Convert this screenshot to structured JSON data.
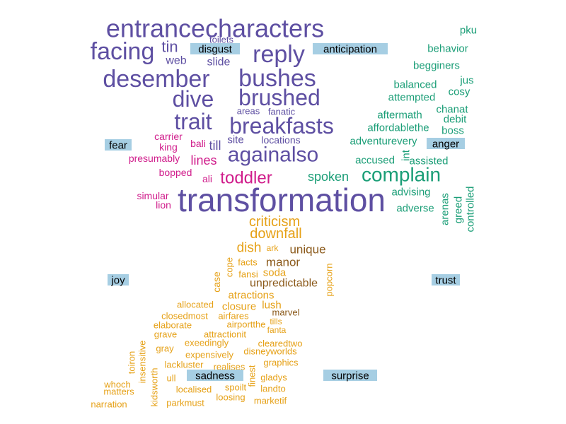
{
  "chart_data": {
    "type": "wordcloud",
    "title": "",
    "colors": {
      "anger": "#1b9e77",
      "anticipation": "#5e4fa2",
      "disgust": "#5e4fa2",
      "fear": "#d01c8b",
      "joy": "#5e4fa2",
      "sadness": "#e6a117",
      "surprise": "#8b5a1b",
      "trust": "#1b9e77",
      "label_background": "#a6cee3"
    },
    "labels": [
      "anticipation",
      "disgust",
      "fear",
      "joy",
      "sadness",
      "surprise",
      "anger",
      "trust"
    ],
    "words": [
      {
        "text": "transformation",
        "group": "joy",
        "size": 5
      },
      {
        "text": "entrancecharacters",
        "group": "anticipation",
        "size": 4
      },
      {
        "text": "facing",
        "group": "anticipation",
        "size": 4
      },
      {
        "text": "reply",
        "group": "anticipation",
        "size": 4
      },
      {
        "text": "desember",
        "group": "anticipation",
        "size": 4
      },
      {
        "text": "bushes",
        "group": "anticipation",
        "size": 4
      },
      {
        "text": "dive",
        "group": "anticipation",
        "size": 4
      },
      {
        "text": "brushed",
        "group": "anticipation",
        "size": 4
      },
      {
        "text": "trait",
        "group": "anticipation",
        "size": 4
      },
      {
        "text": "breakfasts",
        "group": "anticipation",
        "size": 4
      },
      {
        "text": "againalso",
        "group": "anticipation",
        "size": 3
      },
      {
        "text": "tin",
        "group": "anticipation",
        "size": 2
      },
      {
        "text": "web",
        "group": "anticipation",
        "size": 1
      },
      {
        "text": "slide",
        "group": "anticipation",
        "size": 1
      },
      {
        "text": "toilets",
        "group": "anticipation",
        "size": 1
      },
      {
        "text": "areas",
        "group": "anticipation",
        "size": 1
      },
      {
        "text": "fanatic",
        "group": "anticipation",
        "size": 1
      },
      {
        "text": "till",
        "group": "anticipation",
        "size": 1
      },
      {
        "text": "site",
        "group": "anticipation",
        "size": 1
      },
      {
        "text": "locations",
        "group": "anticipation",
        "size": 1
      },
      {
        "text": "toddler",
        "group": "fear",
        "size": 3
      },
      {
        "text": "lines",
        "group": "fear",
        "size": 2
      },
      {
        "text": "carrier",
        "group": "fear",
        "size": 1
      },
      {
        "text": "king",
        "group": "fear",
        "size": 1
      },
      {
        "text": "bali",
        "group": "fear",
        "size": 1
      },
      {
        "text": "presumably",
        "group": "fear",
        "size": 1
      },
      {
        "text": "bopped",
        "group": "fear",
        "size": 1
      },
      {
        "text": "ali",
        "group": "fear",
        "size": 1
      },
      {
        "text": "simular",
        "group": "fear",
        "size": 1
      },
      {
        "text": "lion",
        "group": "fear",
        "size": 1
      },
      {
        "text": "complain",
        "group": "anger",
        "size": 3
      },
      {
        "text": "spoken",
        "group": "anger",
        "size": 2
      },
      {
        "text": "pku",
        "group": "anger",
        "size": 1
      },
      {
        "text": "behavior",
        "group": "anger",
        "size": 1
      },
      {
        "text": "begginers",
        "group": "anger",
        "size": 1
      },
      {
        "text": "balanced",
        "group": "anger",
        "size": 1
      },
      {
        "text": "jus",
        "group": "anger",
        "size": 1
      },
      {
        "text": "attempted",
        "group": "anger",
        "size": 1
      },
      {
        "text": "cosy",
        "group": "anger",
        "size": 1
      },
      {
        "text": "chanat",
        "group": "anger",
        "size": 1
      },
      {
        "text": "aftermath",
        "group": "anger",
        "size": 1
      },
      {
        "text": "debit",
        "group": "anger",
        "size": 1
      },
      {
        "text": "affordablethe",
        "group": "anger",
        "size": 1
      },
      {
        "text": "boss",
        "group": "anger",
        "size": 1
      },
      {
        "text": "adventurevery",
        "group": "anger",
        "size": 1
      },
      {
        "text": "int",
        "group": "anger",
        "size": 1
      },
      {
        "text": "accused",
        "group": "anger",
        "size": 1
      },
      {
        "text": "assisted",
        "group": "anger",
        "size": 1
      },
      {
        "text": "advising",
        "group": "anger",
        "size": 1
      },
      {
        "text": "adverse",
        "group": "anger",
        "size": 1
      },
      {
        "text": "arenas",
        "group": "anger",
        "size": 1
      },
      {
        "text": "greed",
        "group": "anger",
        "size": 1
      },
      {
        "text": "controlled",
        "group": "anger",
        "size": 1
      },
      {
        "text": "criticism",
        "group": "sadness",
        "size": 2
      },
      {
        "text": "downfall",
        "group": "sadness",
        "size": 2
      },
      {
        "text": "dish",
        "group": "sadness",
        "size": 2
      },
      {
        "text": "ark",
        "group": "sadness",
        "size": 1
      },
      {
        "text": "cope",
        "group": "sadness",
        "size": 1
      },
      {
        "text": "facts",
        "group": "sadness",
        "size": 1
      },
      {
        "text": "case",
        "group": "sadness",
        "size": 1
      },
      {
        "text": "fansi",
        "group": "sadness",
        "size": 1
      },
      {
        "text": "soda",
        "group": "sadness",
        "size": 1
      },
      {
        "text": "atractions",
        "group": "sadness",
        "size": 1
      },
      {
        "text": "closure",
        "group": "sadness",
        "size": 1
      },
      {
        "text": "lush",
        "group": "sadness",
        "size": 1
      },
      {
        "text": "popcorn",
        "group": "sadness",
        "size": 1
      },
      {
        "text": "allocated",
        "group": "sadness",
        "size": 1
      },
      {
        "text": "closedmost",
        "group": "sadness",
        "size": 1
      },
      {
        "text": "airfares",
        "group": "sadness",
        "size": 1
      },
      {
        "text": "elaborate",
        "group": "sadness",
        "size": 1
      },
      {
        "text": "airportthe",
        "group": "sadness",
        "size": 1
      },
      {
        "text": "tills",
        "group": "sadness",
        "size": 1
      },
      {
        "text": "grave",
        "group": "sadness",
        "size": 1
      },
      {
        "text": "attractionit",
        "group": "sadness",
        "size": 1
      },
      {
        "text": "fanta",
        "group": "sadness",
        "size": 1
      },
      {
        "text": "exeedingly",
        "group": "sadness",
        "size": 1
      },
      {
        "text": "clearedtwo",
        "group": "sadness",
        "size": 1
      },
      {
        "text": "gray",
        "group": "sadness",
        "size": 1
      },
      {
        "text": "disneyworlds",
        "group": "sadness",
        "size": 1
      },
      {
        "text": "toiron",
        "group": "sadness",
        "size": 1
      },
      {
        "text": "insensitive",
        "group": "sadness",
        "size": 1
      },
      {
        "text": "expensively",
        "group": "sadness",
        "size": 1
      },
      {
        "text": "lackluster",
        "group": "sadness",
        "size": 1
      },
      {
        "text": "realises",
        "group": "sadness",
        "size": 1
      },
      {
        "text": "graphics",
        "group": "sadness",
        "size": 1
      },
      {
        "text": "ull",
        "group": "sadness",
        "size": 1
      },
      {
        "text": "finest",
        "group": "sadness",
        "size": 1
      },
      {
        "text": "gladys",
        "group": "sadness",
        "size": 1
      },
      {
        "text": "whoch",
        "group": "sadness",
        "size": 1
      },
      {
        "text": "matters",
        "group": "sadness",
        "size": 1
      },
      {
        "text": "kidsworth",
        "group": "sadness",
        "size": 1
      },
      {
        "text": "localised",
        "group": "sadness",
        "size": 1
      },
      {
        "text": "spoilt",
        "group": "sadness",
        "size": 1
      },
      {
        "text": "landto",
        "group": "sadness",
        "size": 1
      },
      {
        "text": "loosing",
        "group": "sadness",
        "size": 1
      },
      {
        "text": "narration",
        "group": "sadness",
        "size": 1
      },
      {
        "text": "parkmust",
        "group": "sadness",
        "size": 1
      },
      {
        "text": "marketif",
        "group": "sadness",
        "size": 1
      },
      {
        "text": "unique",
        "group": "surprise",
        "size": 2
      },
      {
        "text": "manor",
        "group": "surprise",
        "size": 2
      },
      {
        "text": "unpredictable",
        "group": "surprise",
        "size": 1
      },
      {
        "text": "marvel",
        "group": "surprise",
        "size": 1
      }
    ]
  }
}
